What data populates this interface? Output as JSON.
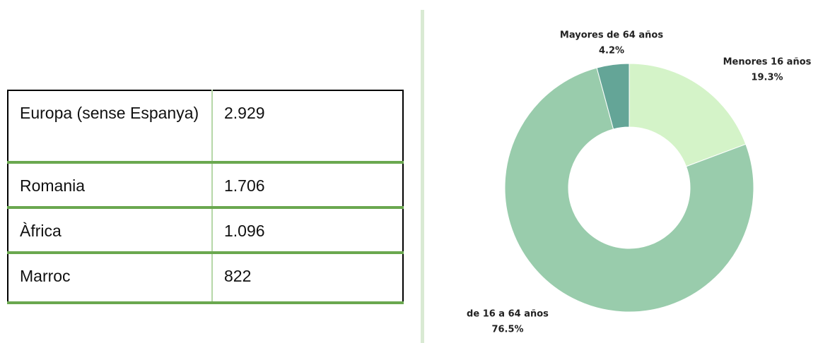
{
  "table": {
    "rows": [
      [
        "Europa (sense Espanya)",
        "2.929"
      ],
      [
        "Romania",
        "1.706"
      ],
      [
        "Àfrica",
        "1.096"
      ],
      [
        "Marroc",
        "822"
      ]
    ]
  },
  "chart_data": {
    "type": "donut",
    "categories": [
      "Menores 16 años",
      "de 16 a 64 años",
      "Mayores de 64 años"
    ],
    "values": [
      19.3,
      76.5,
      4.2
    ],
    "value_labels": [
      "19.3%",
      "76.5%",
      "4.2%"
    ],
    "colors": [
      "#d4f3c8",
      "#99ccac",
      "#64a597"
    ]
  }
}
